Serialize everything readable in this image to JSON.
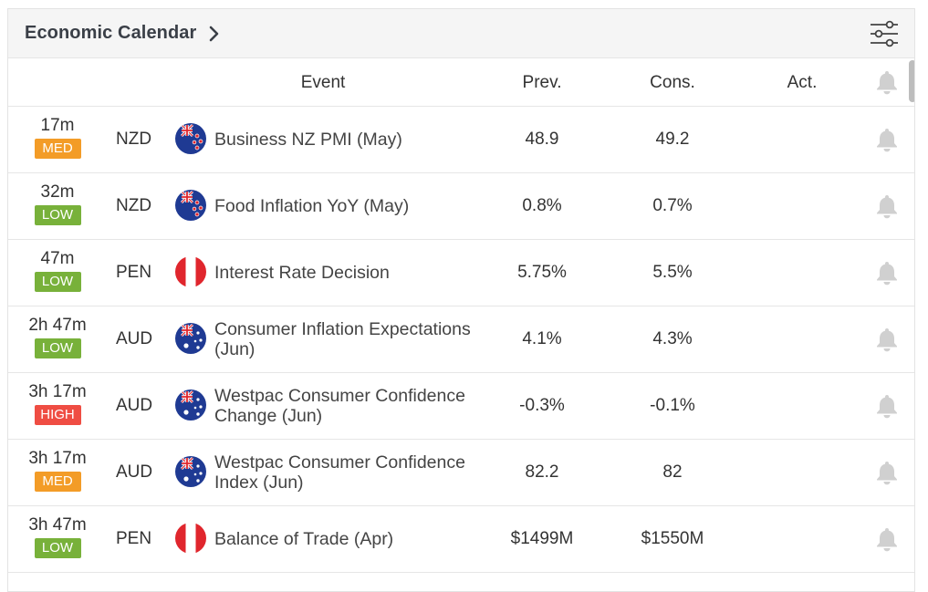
{
  "header": {
    "title": "Economic Calendar"
  },
  "columns": {
    "event": "Event",
    "prev": "Prev.",
    "cons": "Cons.",
    "act": "Act."
  },
  "colors": {
    "med": "#f39c27",
    "low": "#78b13a",
    "high": "#ef4d43",
    "bell": "#d0d0d0"
  },
  "rows": [
    {
      "time": "17m",
      "importance": "MED",
      "currency": "NZD",
      "flag": "nz",
      "event": "Business NZ PMI (May)",
      "prev": "48.9",
      "cons": "49.2",
      "act": ""
    },
    {
      "time": "32m",
      "importance": "LOW",
      "currency": "NZD",
      "flag": "nz",
      "event": "Food Inflation YoY (May)",
      "prev": "0.8%",
      "cons": "0.7%",
      "act": ""
    },
    {
      "time": "47m",
      "importance": "LOW",
      "currency": "PEN",
      "flag": "pe",
      "event": "Interest Rate Decision",
      "prev": "5.75%",
      "cons": "5.5%",
      "act": ""
    },
    {
      "time": "2h 47m",
      "importance": "LOW",
      "currency": "AUD",
      "flag": "au",
      "event": "Consumer Inflation Expectations (Jun)",
      "prev": "4.1%",
      "cons": "4.3%",
      "act": ""
    },
    {
      "time": "3h 17m",
      "importance": "HIGH",
      "currency": "AUD",
      "flag": "au",
      "event": "Westpac Consumer Confidence Change (Jun)",
      "prev": "-0.3%",
      "cons": "-0.1%",
      "act": ""
    },
    {
      "time": "3h 17m",
      "importance": "MED",
      "currency": "AUD",
      "flag": "au",
      "event": "Westpac Consumer Confidence Index (Jun)",
      "prev": "82.2",
      "cons": "82",
      "act": ""
    },
    {
      "time": "3h 47m",
      "importance": "LOW",
      "currency": "PEN",
      "flag": "pe",
      "event": "Balance of Trade (Apr)",
      "prev": "$1499M",
      "cons": "$1550M",
      "act": ""
    }
  ]
}
